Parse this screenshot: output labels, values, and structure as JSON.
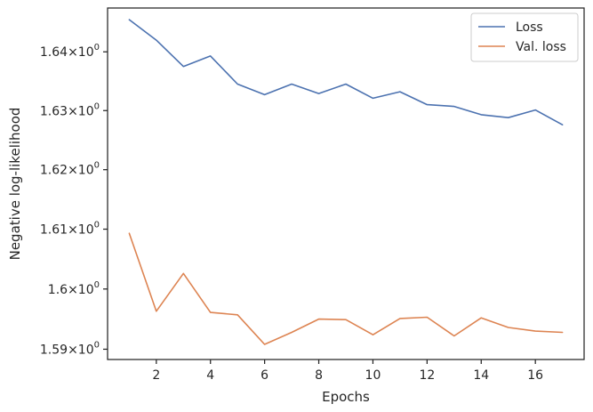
{
  "chart_data": {
    "type": "line",
    "xlabel": "Epochs",
    "ylabel": "Negative log-likelihood",
    "yscale": "log",
    "xlim": [
      0.2,
      17.8
    ],
    "ylim": [
      1.5883,
      1.6475
    ],
    "x_ticks": [
      2,
      4,
      6,
      8,
      10,
      12,
      14,
      16
    ],
    "x_tick_labels": [
      "2",
      "4",
      "6",
      "8",
      "10",
      "12",
      "14",
      "16"
    ],
    "y_ticks": [
      {
        "value": 1.59,
        "mantissa": "1.59",
        "base": "10",
        "exp": "0"
      },
      {
        "value": 1.6,
        "mantissa": "1.6",
        "base": "10",
        "exp": "0"
      },
      {
        "value": 1.61,
        "mantissa": "1.61",
        "base": "10",
        "exp": "0"
      },
      {
        "value": 1.62,
        "mantissa": "1.62",
        "base": "10",
        "exp": "0"
      },
      {
        "value": 1.63,
        "mantissa": "1.63",
        "base": "10",
        "exp": "0"
      },
      {
        "value": 1.64,
        "mantissa": "1.64",
        "base": "10",
        "exp": "0"
      }
    ],
    "grid": false,
    "legend_position": "top-right",
    "x": [
      1,
      2,
      3,
      4,
      5,
      6,
      7,
      8,
      9,
      10,
      11,
      12,
      13,
      14,
      15,
      16,
      17
    ],
    "series": [
      {
        "name": "Loss",
        "color": "#4c72b0",
        "values": [
          1.6455,
          1.642,
          1.6375,
          1.6393,
          1.6345,
          1.6327,
          1.6345,
          1.6329,
          1.6345,
          1.6321,
          1.6332,
          1.631,
          1.6307,
          1.6293,
          1.6288,
          1.6301,
          1.6276
        ]
      },
      {
        "name": "Val. loss",
        "color": "#dd8452",
        "values": [
          1.6093,
          1.5963,
          1.6026,
          1.5961,
          1.5957,
          1.5908,
          1.5928,
          1.595,
          1.5949,
          1.5924,
          1.5951,
          1.5953,
          1.5922,
          1.5952,
          1.5936,
          1.593,
          1.5928
        ]
      }
    ]
  }
}
